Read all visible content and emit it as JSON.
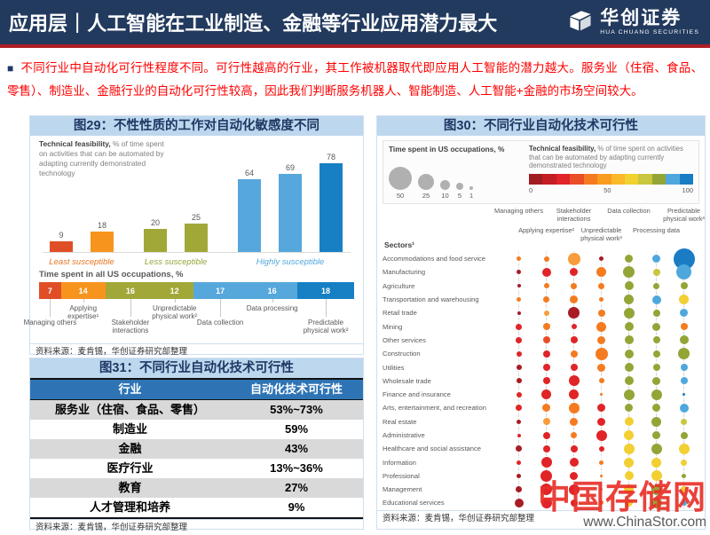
{
  "header": {
    "section": "应用层",
    "divider": "|",
    "title": "人工智能在工业制造、金融等行业应用潜力最大",
    "logo_cn": "华创证券",
    "logo_en": "HUA CHUANG SECURITIES"
  },
  "summary": {
    "bullet": "■",
    "text": "不同行业中自动化可行性程度不同。可行性越高的行业，其工作被机器取代即应用人工智能的潜力越大。服务业（住宿、食品、零售）、制造业、金融行业的自动化可行性较高，因此我们判断服务机器人、智能制造、人工智能+金融的市场空间较大。"
  },
  "source_note": "资料来源：麦肯锡，华创证券研究部整理",
  "watermark": {
    "cn": "中国存储网",
    "url": "www.ChinaStor.com"
  },
  "chart_data": [
    {
      "type": "bar",
      "title": "图29：不性性质的工作对自动化敏感度不同",
      "note_bold": "Technical feasibility,",
      "note_rest": " % of time spent on activities that can be automated by adapting currently demonstrated technology",
      "values": [
        9,
        18,
        20,
        25,
        64,
        69,
        78
      ],
      "bar_colors": [
        "#e04e27",
        "#f7941e",
        "#a2a838",
        "#a2a838",
        "#56a7dc",
        "#56a7dc",
        "#1780c4"
      ],
      "ylim": [
        0,
        80
      ],
      "groups": [
        {
          "label": "Least susceptible",
          "bars": [
            0,
            1
          ],
          "color": "#e87722"
        },
        {
          "label": "Less susceptible",
          "bars": [
            2,
            3
          ],
          "color": "#93a537"
        },
        {
          "label": "Highly susceptible",
          "bars": [
            4,
            5,
            6
          ],
          "color": "#4fa8dc"
        }
      ]
    },
    {
      "type": "stacked-bar",
      "title": "Time spent in all US occupations, %",
      "segments": [
        {
          "label": "Managing others",
          "value": 7,
          "color": "#e04e27",
          "pos": "lower"
        },
        {
          "label": "Applying expertise¹",
          "value": 14,
          "color": "#f7941e",
          "pos": "upper"
        },
        {
          "label": "Stakeholder interactions",
          "value": 16,
          "color": "#a2a838",
          "pos": "lower"
        },
        {
          "label": "Unpredictable physical work²",
          "value": 12,
          "color": "#a2a838",
          "pos": "upper"
        },
        {
          "label": "Data collection",
          "value": 17,
          "color": "#56a7dc",
          "pos": "lower"
        },
        {
          "label": "Data processing",
          "value": 16,
          "color": "#56a7dc",
          "pos": "upper"
        },
        {
          "label": "Predictable physical work²",
          "value": 18,
          "color": "#1780c4",
          "pos": "lower"
        }
      ]
    },
    {
      "type": "bubble-matrix",
      "title": "图30：不同行业自动化技术可行性",
      "legend": {
        "size_title": "Time spent in US occupations, %",
        "size_circles": [
          {
            "label": "50",
            "d": 26
          },
          {
            "label": "25",
            "d": 18
          },
          {
            "label": "10",
            "d": 11
          },
          {
            "label": "5",
            "d": 8
          },
          {
            "label": "1",
            "d": 4
          }
        ],
        "feas_bold": "Technical feasibility,",
        "feas_rest": " % of time spent on activities that can be automated by adapting currently demonstrated technology",
        "gradient": [
          "#a01d22",
          "#c41e25",
          "#e02428",
          "#e94e27",
          "#f47b20",
          "#f89c1e",
          "#fbb92a",
          "#f2d230",
          "#c9c63f",
          "#93a537",
          "#4fa8dc",
          "#1a7dc4"
        ],
        "scale": [
          "0",
          "50",
          "100"
        ]
      },
      "sectors_label": "Sectors¹",
      "columns": [
        {
          "label": "Managing others",
          "pos": "upper"
        },
        {
          "label": "Applying expertise²",
          "pos": "lower"
        },
        {
          "label": "Stakeholder interactions",
          "pos": "upper"
        },
        {
          "label": "Unpredictable physical work³",
          "pos": "lower"
        },
        {
          "label": "Data collection",
          "pos": "upper"
        },
        {
          "label": "Processing data",
          "pos": "lower"
        },
        {
          "label": "Predictable physical work³",
          "pos": "upper"
        }
      ],
      "palette": {
        "DR": "#a81c24",
        "R": "#e02427",
        "RO": "#e94e27",
        "O": "#f47b20",
        "LO": "#f89c3c",
        "Y": "#f2cf32",
        "YG": "#c9c63f",
        "OL": "#93a537",
        "LB": "#4fa8dc",
        "B": "#1a7dc4"
      },
      "rows": [
        {
          "sector": "Accommodations and food service",
          "bubbles": [
            [
              5,
              "O"
            ],
            [
              6,
              "O"
            ],
            [
              14,
              "LO"
            ],
            [
              5,
              "DR"
            ],
            [
              9,
              "OL"
            ],
            [
              9,
              "LB"
            ],
            [
              24,
              "B"
            ]
          ]
        },
        {
          "sector": "Manufacturing",
          "bubbles": [
            [
              5,
              "DR"
            ],
            [
              10,
              "R"
            ],
            [
              9,
              "R"
            ],
            [
              11,
              "O"
            ],
            [
              13,
              "OL"
            ],
            [
              8,
              "YG"
            ],
            [
              17,
              "LB"
            ]
          ]
        },
        {
          "sector": "Agriculture",
          "bubbles": [
            [
              4,
              "DR"
            ],
            [
              6,
              "O"
            ],
            [
              7,
              "O"
            ],
            [
              7,
              "O"
            ],
            [
              10,
              "OL"
            ],
            [
              7,
              "OL"
            ],
            [
              8,
              "OL"
            ]
          ]
        },
        {
          "sector": "Transportation and warehousing",
          "bubbles": [
            [
              5,
              "O"
            ],
            [
              7,
              "O"
            ],
            [
              9,
              "O"
            ],
            [
              5,
              "O"
            ],
            [
              11,
              "OL"
            ],
            [
              10,
              "LB"
            ],
            [
              11,
              "Y"
            ]
          ]
        },
        {
          "sector": "Retail trade",
          "bubbles": [
            [
              4,
              "DR"
            ],
            [
              6,
              "LO"
            ],
            [
              13,
              "DR"
            ],
            [
              8,
              "O"
            ],
            [
              12,
              "OL"
            ],
            [
              8,
              "OL"
            ],
            [
              9,
              "LB"
            ]
          ]
        },
        {
          "sector": "Mining",
          "bubbles": [
            [
              7,
              "R"
            ],
            [
              8,
              "O"
            ],
            [
              6,
              "R"
            ],
            [
              11,
              "O"
            ],
            [
              10,
              "OL"
            ],
            [
              9,
              "OL"
            ],
            [
              8,
              "O"
            ]
          ]
        },
        {
          "sector": "Other services",
          "bubbles": [
            [
              7,
              "R"
            ],
            [
              8,
              "RO"
            ],
            [
              8,
              "R"
            ],
            [
              9,
              "O"
            ],
            [
              10,
              "OL"
            ],
            [
              8,
              "OL"
            ],
            [
              10,
              "OL"
            ]
          ]
        },
        {
          "sector": "Construction",
          "bubbles": [
            [
              6,
              "R"
            ],
            [
              8,
              "R"
            ],
            [
              8,
              "O"
            ],
            [
              14,
              "O"
            ],
            [
              10,
              "OL"
            ],
            [
              8,
              "OL"
            ],
            [
              13,
              "OL"
            ]
          ]
        },
        {
          "sector": "Utilities",
          "bubbles": [
            [
              6,
              "DR"
            ],
            [
              8,
              "R"
            ],
            [
              8,
              "R"
            ],
            [
              9,
              "O"
            ],
            [
              10,
              "OL"
            ],
            [
              8,
              "OL"
            ],
            [
              8,
              "LB"
            ]
          ]
        },
        {
          "sector": "Wholesale trade",
          "bubbles": [
            [
              6,
              "DR"
            ],
            [
              8,
              "R"
            ],
            [
              12,
              "R"
            ],
            [
              6,
              "O"
            ],
            [
              10,
              "OL"
            ],
            [
              9,
              "OL"
            ],
            [
              8,
              "LB"
            ]
          ]
        },
        {
          "sector": "Finance and insurance",
          "bubbles": [
            [
              6,
              "R"
            ],
            [
              11,
              "R"
            ],
            [
              11,
              "R"
            ],
            [
              3,
              "O"
            ],
            [
              12,
              "OL"
            ],
            [
              12,
              "OL"
            ],
            [
              3,
              "B"
            ]
          ]
        },
        {
          "sector": "Arts, entertainment, and recreation",
          "bubbles": [
            [
              7,
              "R"
            ],
            [
              9,
              "O"
            ],
            [
              12,
              "O"
            ],
            [
              9,
              "R"
            ],
            [
              9,
              "OL"
            ],
            [
              9,
              "OL"
            ],
            [
              10,
              "LB"
            ]
          ]
        },
        {
          "sector": "Real estate",
          "bubbles": [
            [
              5,
              "DR"
            ],
            [
              8,
              "LO"
            ],
            [
              9,
              "O"
            ],
            [
              9,
              "R"
            ],
            [
              10,
              "Y"
            ],
            [
              11,
              "OL"
            ],
            [
              7,
              "YG"
            ]
          ]
        },
        {
          "sector": "Administrative",
          "bubbles": [
            [
              4,
              "R"
            ],
            [
              8,
              "R"
            ],
            [
              7,
              "O"
            ],
            [
              12,
              "R"
            ],
            [
              11,
              "Y"
            ],
            [
              9,
              "OL"
            ],
            [
              8,
              "OL"
            ]
          ]
        },
        {
          "sector": "Healthcare and social assistance",
          "bubbles": [
            [
              7,
              "DR"
            ],
            [
              8,
              "R"
            ],
            [
              8,
              "R"
            ],
            [
              6,
              "R"
            ],
            [
              12,
              "Y"
            ],
            [
              12,
              "OL"
            ],
            [
              12,
              "Y"
            ]
          ]
        },
        {
          "sector": "Information",
          "bubbles": [
            [
              5,
              "R"
            ],
            [
              12,
              "R"
            ],
            [
              10,
              "R"
            ],
            [
              5,
              "O"
            ],
            [
              11,
              "Y"
            ],
            [
              11,
              "Y"
            ],
            [
              7,
              "Y"
            ]
          ]
        },
        {
          "sector": "Professional",
          "bubbles": [
            [
              5,
              "DR"
            ],
            [
              13,
              "R"
            ],
            [
              9,
              "R"
            ],
            [
              3,
              "O"
            ],
            [
              10,
              "Y"
            ],
            [
              12,
              "Y"
            ],
            [
              5,
              "OL"
            ]
          ]
        },
        {
          "sector": "Management",
          "bubbles": [
            [
              7,
              "DR"
            ],
            [
              13,
              "R"
            ],
            [
              12,
              "R"
            ],
            [
              3,
              "O"
            ],
            [
              11,
              "Y"
            ],
            [
              12,
              "OL"
            ],
            [
              7,
              "Y"
            ]
          ]
        },
        {
          "sector": "Educational services",
          "bubbles": [
            [
              10,
              "DR"
            ],
            [
              12,
              "R"
            ],
            [
              8,
              "R"
            ],
            [
              5,
              "O"
            ],
            [
              9,
              "Y"
            ],
            [
              12,
              "OL"
            ],
            [
              6,
              "LB"
            ]
          ]
        }
      ]
    },
    {
      "type": "table",
      "title": "图31：不同行业自动化技术可行性",
      "columns": [
        "行业",
        "自动化技术可行性"
      ],
      "rows": [
        [
          "服务业（住宿、食品、零售）",
          "53%~73%"
        ],
        [
          "制造业",
          "59%"
        ],
        [
          "金融",
          "43%"
        ],
        [
          "医疗行业",
          "13%~36%"
        ],
        [
          "教育",
          "27%"
        ],
        [
          "人才管理和培养",
          "9%"
        ]
      ]
    }
  ]
}
